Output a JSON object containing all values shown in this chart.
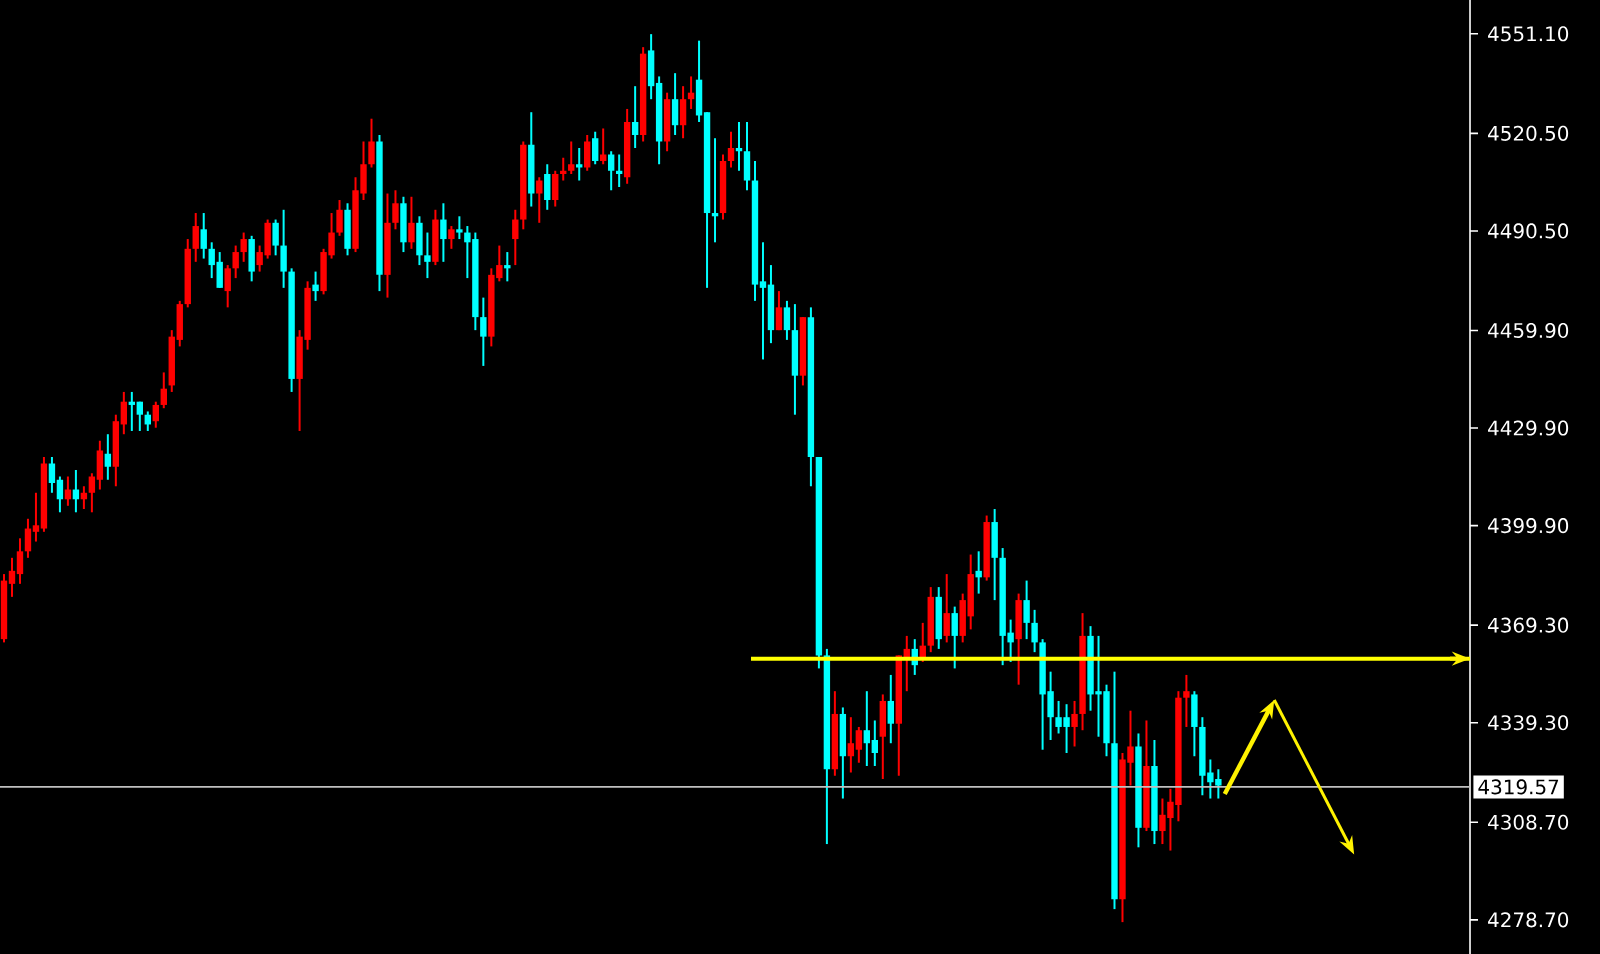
{
  "chart_data": {
    "type": "candlestick",
    "categories": [
      null,
      null,
      null,
      null,
      null,
      null,
      null,
      null,
      null,
      null,
      null,
      null,
      null,
      null,
      null,
      null,
      null,
      null,
      null,
      null,
      null,
      null,
      null,
      null,
      null,
      null,
      null,
      null,
      null,
      null,
      null,
      null,
      null,
      null,
      null,
      null,
      null,
      null,
      null,
      null,
      null,
      null,
      null,
      null,
      null,
      null,
      null,
      null,
      null,
      null,
      null,
      null,
      null,
      null,
      null,
      null,
      null,
      null,
      null,
      null,
      null,
      null,
      null,
      null,
      null,
      null,
      null,
      null,
      null,
      null,
      null,
      null,
      null,
      null,
      null,
      null,
      null,
      null,
      null,
      null,
      null,
      null,
      null,
      null,
      null,
      null,
      null,
      null,
      null,
      null,
      null,
      null,
      null,
      null,
      null,
      null,
      null,
      null,
      null,
      null,
      null,
      null,
      null,
      null,
      null,
      null,
      null,
      null,
      null,
      null,
      null,
      null,
      null,
      null,
      null,
      null,
      null,
      null,
      null,
      null,
      null,
      null,
      null,
      null,
      null,
      null,
      null,
      null,
      null,
      null,
      null,
      null,
      null,
      null,
      null,
      null,
      null,
      null,
      null,
      null,
      null,
      null,
      null,
      null,
      null,
      null,
      null,
      null,
      null,
      null,
      null,
      null,
      null,
      null,
      null,
      null,
      null,
      null,
      null,
      null,
      null,
      null,
      null,
      null,
      null,
      null,
      null,
      null,
      null,
      null,
      null,
      null,
      null,
      null,
      null,
      null,
      null,
      null,
      null,
      null,
      null,
      null,
      null,
      null
    ],
    "ohlc": [
      [
        4365,
        4385,
        4364,
        4383
      ],
      [
        4382,
        4390,
        4378,
        4386
      ],
      [
        4385,
        4396,
        4382,
        4392
      ],
      [
        4392,
        4402,
        4390,
        4399
      ],
      [
        4398,
        4410,
        4395,
        4400
      ],
      [
        4399,
        4421,
        4398,
        4419
      ],
      [
        4419,
        4421,
        4410,
        4413
      ],
      [
        4414,
        4415,
        4404,
        4408
      ],
      [
        4408,
        4415,
        4406,
        4411
      ],
      [
        4411,
        4417,
        4404,
        4408
      ],
      [
        4408,
        4412,
        4405,
        4410
      ],
      [
        4410,
        4416,
        4404,
        4415
      ],
      [
        4414,
        4426,
        4411,
        4423
      ],
      [
        4422,
        4428,
        4414,
        4418
      ],
      [
        4418,
        4434,
        4412,
        4432
      ],
      [
        4431,
        4441,
        4428,
        4438
      ],
      [
        4438,
        4441,
        4429,
        4437
      ],
      [
        4438,
        4438,
        4429,
        4434
      ],
      [
        4434,
        4435,
        4429,
        4431
      ],
      [
        4432,
        4438,
        4430,
        4437
      ],
      [
        4437,
        4447,
        4436,
        4442
      ],
      [
        4443,
        4460,
        4441,
        4458
      ],
      [
        4457,
        4469,
        4455,
        4468
      ],
      [
        4468,
        4488,
        4467,
        4485
      ],
      [
        4485,
        4496,
        4481,
        4492
      ],
      [
        4491,
        4496,
        4482,
        4485
      ],
      [
        4485,
        4487,
        4476,
        4480
      ],
      [
        4481,
        4484,
        4473,
        4473
      ],
      [
        4472,
        4480,
        4467,
        4479
      ],
      [
        4479,
        4486,
        4476,
        4484
      ],
      [
        4484,
        4490,
        4481,
        4488
      ],
      [
        4488,
        4489,
        4475,
        4478
      ],
      [
        4480,
        4486,
        4478,
        4484
      ],
      [
        4483,
        4494,
        4482,
        4493
      ],
      [
        4493,
        4494,
        4483,
        4486
      ],
      [
        4486,
        4497,
        4473,
        4478
      ],
      [
        4478,
        4479,
        4441,
        4445
      ],
      [
        4445,
        4460,
        4429,
        4458
      ],
      [
        4457,
        4475,
        4454,
        4473
      ],
      [
        4474,
        4478,
        4469,
        4472
      ],
      [
        4472,
        4485,
        4471,
        4484
      ],
      [
        4483,
        4496,
        4482,
        4490
      ],
      [
        4490,
        4500,
        4489,
        4497
      ],
      [
        4497,
        4499,
        4483,
        4485
      ],
      [
        4485,
        4507,
        4484,
        4503
      ],
      [
        4502,
        4518,
        4500,
        4511
      ],
      [
        4511,
        4525,
        4510,
        4518
      ],
      [
        4518,
        4520,
        4472,
        4477
      ],
      [
        4477,
        4502,
        4470,
        4493
      ],
      [
        4493,
        4503,
        4491,
        4499
      ],
      [
        4499,
        4501,
        4484,
        4487
      ],
      [
        4487,
        4501,
        4485,
        4493
      ],
      [
        4493,
        4495,
        4480,
        4483
      ],
      [
        4483,
        4490,
        4476,
        4481
      ],
      [
        4481,
        4497,
        4480,
        4494
      ],
      [
        4494,
        4499,
        4481,
        4488
      ],
      [
        4488,
        4492,
        4485,
        4491
      ],
      [
        4491,
        4495,
        4488,
        4490
      ],
      [
        4490,
        4492,
        4476,
        4487
      ],
      [
        4488,
        4490,
        4460,
        4464
      ],
      [
        4464,
        4470,
        4449,
        4458
      ],
      [
        4458,
        4479,
        4455,
        4477
      ],
      [
        4476,
        4486,
        4475,
        4480
      ],
      [
        4480,
        4484,
        4475,
        4479
      ],
      [
        4488,
        4497,
        4480,
        4494
      ],
      [
        4494,
        4518,
        4491,
        4517
      ],
      [
        4517,
        4527,
        4498,
        4502
      ],
      [
        4502,
        4507,
        4493,
        4506
      ],
      [
        4508,
        4511,
        4497,
        4500
      ],
      [
        4500,
        4509,
        4498,
        4508
      ],
      [
        4508,
        4513,
        4506,
        4509
      ],
      [
        4509,
        4518,
        4508,
        4511
      ],
      [
        4511,
        4516,
        4506,
        4510
      ],
      [
        4510,
        4520,
        4509,
        4518
      ],
      [
        4519,
        4521,
        4511,
        4512
      ],
      [
        4512,
        4522,
        4511,
        4514
      ],
      [
        4514,
        4515,
        4503,
        4509
      ],
      [
        4509,
        4514,
        4504,
        4508
      ],
      [
        4507,
        4528,
        4505,
        4524
      ],
      [
        4524,
        4535,
        4516,
        4520
      ],
      [
        4520,
        4547,
        4518,
        4545
      ],
      [
        4546,
        4551,
        4531,
        4535
      ],
      [
        4536,
        4538,
        4511,
        4518
      ],
      [
        4518,
        4533,
        4515,
        4531
      ],
      [
        4531,
        4539,
        4520,
        4523
      ],
      [
        4523,
        4535,
        4519,
        4531
      ],
      [
        4531,
        4538,
        4528,
        4533
      ],
      [
        4537,
        4549,
        4524,
        4526
      ],
      [
        4527,
        4527,
        4473,
        4496
      ],
      [
        4496,
        4519,
        4487,
        4495
      ],
      [
        4496,
        4514,
        4494,
        4512
      ],
      [
        4512,
        4521,
        4510,
        4516
      ],
      [
        4516,
        4524,
        4509,
        4515
      ],
      [
        4515,
        4524,
        4503,
        4506
      ],
      [
        4506,
        4512,
        4469,
        4474
      ],
      [
        4475,
        4487,
        4451,
        4473
      ],
      [
        4474,
        4480,
        4456,
        4460
      ],
      [
        4460,
        4472,
        4460,
        4467
      ],
      [
        4467,
        4469,
        4457,
        4460
      ],
      [
        4460,
        4468,
        4434,
        4446
      ],
      [
        4446,
        4464,
        4443,
        4464
      ],
      [
        4464,
        4467,
        4412,
        4421
      ],
      [
        4421,
        4421,
        4356,
        4360
      ],
      [
        4360,
        4362,
        4302,
        4325
      ],
      [
        4325,
        4349,
        4323,
        4342
      ],
      [
        4342,
        4344,
        4316,
        4329
      ],
      [
        4329,
        4341,
        4324,
        4333
      ],
      [
        4331,
        4338,
        4327,
        4337
      ],
      [
        4337,
        4349,
        4326,
        4333
      ],
      [
        4334,
        4340,
        4326,
        4330
      ],
      [
        4335,
        4348,
        4322,
        4346
      ],
      [
        4346,
        4354,
        4333,
        4339
      ],
      [
        4339,
        4360,
        4323,
        4360
      ],
      [
        4359,
        4366,
        4349,
        4362
      ],
      [
        4362,
        4365,
        4354,
        4357
      ],
      [
        4359,
        4370,
        4358,
        4363
      ],
      [
        4363,
        4381,
        4361,
        4378
      ],
      [
        4378,
        4381,
        4362,
        4365
      ],
      [
        4366,
        4385,
        4364,
        4373
      ],
      [
        4373,
        4375,
        4356,
        4366
      ],
      [
        4366,
        4379,
        4364,
        4377
      ],
      [
        4372,
        4391,
        4368,
        4385
      ],
      [
        4386,
        4392,
        4379,
        4384
      ],
      [
        4384,
        4403,
        4383,
        4401
      ],
      [
        4401,
        4405,
        4377,
        4390
      ],
      [
        4390,
        4393,
        4357,
        4366
      ],
      [
        4367,
        4371,
        4358,
        4364
      ],
      [
        4365,
        4379,
        4351,
        4377
      ],
      [
        4377,
        4383,
        4365,
        4370
      ],
      [
        4370,
        4374,
        4361,
        4364
      ],
      [
        4364,
        4365,
        4331,
        4348
      ],
      [
        4349,
        4355,
        4334,
        4341
      ],
      [
        4341,
        4346,
        4336,
        4338
      ],
      [
        4341,
        4345,
        4330,
        4338
      ],
      [
        4338,
        4346,
        4332,
        4342
      ],
      [
        4342,
        4373,
        4337,
        4366
      ],
      [
        4366,
        4369,
        4343,
        4348
      ],
      [
        4349,
        4366,
        4335,
        4348
      ],
      [
        4349,
        4351,
        4329,
        4333
      ],
      [
        4333,
        4355,
        4282,
        4285
      ],
      [
        4285,
        4330,
        4278,
        4328
      ],
      [
        4327,
        4343,
        4320,
        4332
      ],
      [
        4332,
        4336,
        4301,
        4307
      ],
      [
        4307,
        4340,
        4306,
        4326
      ],
      [
        4326,
        4334,
        4302,
        4306
      ],
      [
        4306,
        4316,
        4302,
        4311
      ],
      [
        4310,
        4319,
        4300,
        4315
      ],
      [
        4314,
        4349,
        4309,
        4347
      ],
      [
        4347,
        4354,
        4338,
        4349
      ],
      [
        4348,
        4349,
        4329,
        4338
      ],
      [
        4338,
        4341,
        4317,
        4323
      ],
      [
        4324,
        4328,
        4316,
        4321
      ],
      [
        4322,
        4325,
        4316,
        4320
      ],
      null,
      null,
      null,
      null,
      null,
      null,
      null,
      null,
      null,
      null,
      null,
      null,
      null,
      null,
      null,
      null,
      null,
      null,
      null,
      null,
      null,
      null,
      null,
      null,
      null,
      null,
      null,
      null,
      null,
      null,
      null
    ],
    "ylim": [
      4268.2,
      4561.5
    ],
    "yticks": [
      {
        "value": 4278.7,
        "label": "4278.70"
      },
      {
        "value": 4308.7,
        "label": "4308.70"
      },
      {
        "value": 4339.3,
        "label": "4339.30"
      },
      {
        "value": 4369.3,
        "label": "4369.30"
      },
      {
        "value": 4399.9,
        "label": "4399.90"
      },
      {
        "value": 4429.9,
        "label": "4429.90"
      },
      {
        "value": 4459.9,
        "label": "4459.90"
      },
      {
        "value": 4490.5,
        "label": "4490.50"
      },
      {
        "value": 4520.5,
        "label": "4520.50"
      },
      {
        "value": 4551.1,
        "label": "4551.10"
      }
    ],
    "tick_labels": "y",
    "ref_lines": [
      {
        "axis": "y",
        "value": 4319.57,
        "label": "4319.57",
        "color": "#c0c0c0"
      },
      {
        "axis": "y",
        "value": 4359,
        "color": "#ffff00"
      }
    ],
    "grid": false
  }
}
